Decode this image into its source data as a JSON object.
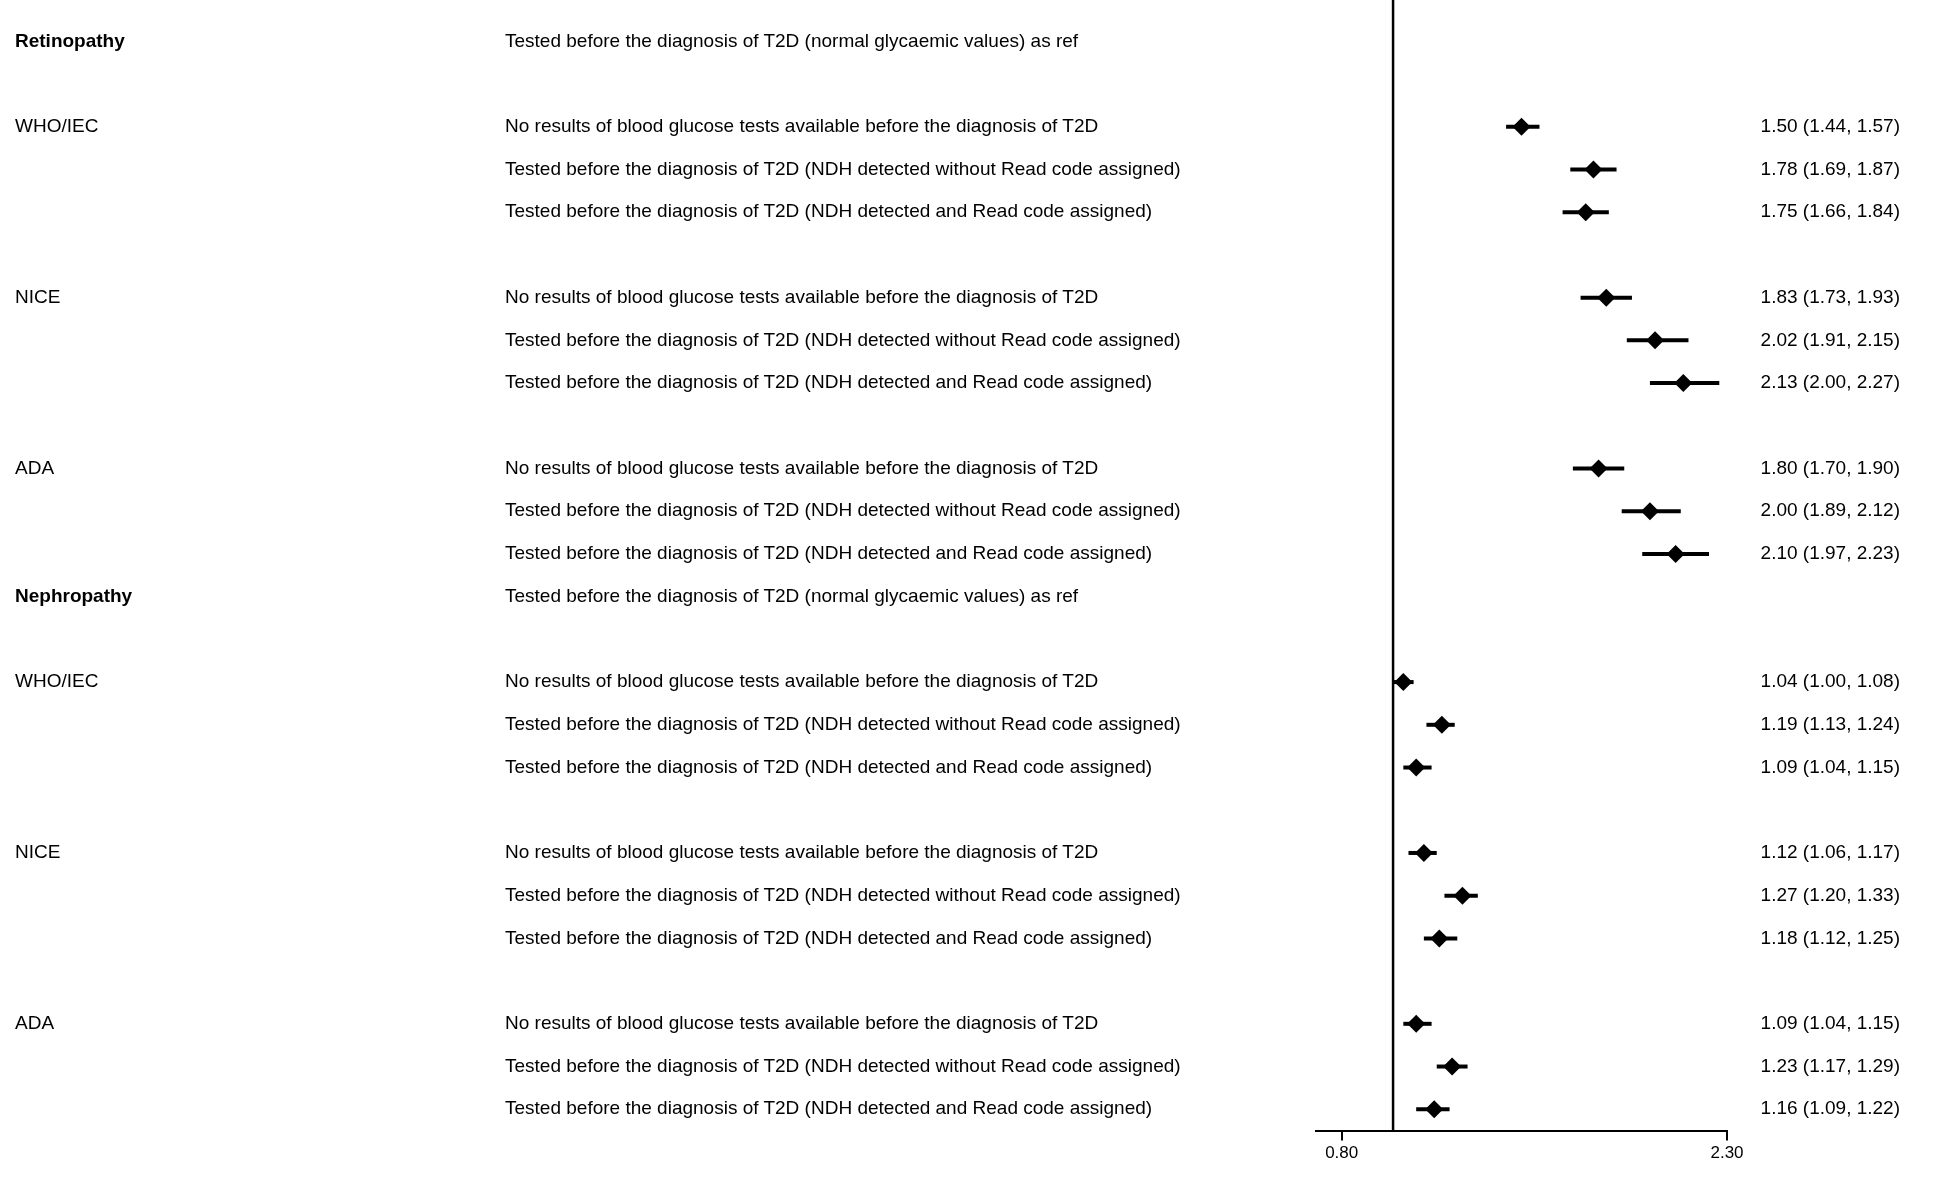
{
  "chart_data": {
    "type": "scatter",
    "orientation": "horizontal",
    "categories": [
      "Tested before the diagnosis of T2D (normal glycaemic values) as ref",
      null,
      "No results of blood glucose tests available before the diagnosis of T2D",
      "Tested before the diagnosis of T2D (NDH detected without Read code assigned)",
      "Tested before the diagnosis of T2D (NDH detected and Read code assigned)",
      null,
      "No results of blood glucose tests available before the diagnosis of T2D",
      "Tested before the diagnosis of T2D (NDH detected without Read code assigned)",
      "Tested before the diagnosis of T2D (NDH detected and Read code assigned)",
      null,
      "No results of blood glucose tests available before the diagnosis of T2D",
      "Tested before the diagnosis of T2D (NDH detected without Read code assigned)",
      "Tested before the diagnosis of T2D (NDH detected and Read code assigned)",
      "Tested before the diagnosis of T2D (normal glycaemic values) as ref",
      null,
      "No results of blood glucose tests available before the diagnosis of T2D",
      "Tested before the diagnosis of T2D (NDH detected without Read code assigned)",
      "Tested before the diagnosis of T2D (NDH detected and Read code assigned)",
      null,
      "No results of blood glucose tests available before the diagnosis of T2D",
      "Tested before the diagnosis of T2D (NDH detected without Read code assigned)",
      "Tested before the diagnosis of T2D (NDH detected and Read code assigned)",
      null,
      "No results of blood glucose tests available before the diagnosis of T2D",
      "Tested before the diagnosis of T2D (NDH detected without Read code assigned)",
      "Tested before the diagnosis of T2D (NDH detected and Read code assigned)"
    ],
    "y2_categories": [
      "Retinopathy",
      null,
      "WHO/IEC",
      null,
      null,
      null,
      "NICE",
      null,
      null,
      null,
      "ADA",
      null,
      null,
      "Nephropathy",
      null,
      "WHO/IEC",
      null,
      null,
      null,
      "NICE",
      null,
      null,
      null,
      "ADA",
      null,
      null
    ],
    "series": [
      {
        "color": "#000000",
        "values": [
          null,
          null,
          1.5,
          1.78,
          1.75,
          null,
          1.83,
          2.02,
          2.13,
          null,
          1.8,
          2.0,
          2.1,
          null,
          null,
          1.04,
          1.19,
          1.09,
          null,
          1.12,
          1.27,
          1.18,
          null,
          1.09,
          1.23,
          1.16
        ],
        "errors": [
          null,
          null,
          [
            1.44,
            1.57
          ],
          [
            1.69,
            1.87
          ],
          [
            1.66,
            1.84
          ],
          null,
          [
            1.73,
            1.93
          ],
          [
            1.91,
            2.15
          ],
          [
            2.0,
            2.27
          ],
          null,
          [
            1.7,
            1.9
          ],
          [
            1.89,
            2.12
          ],
          [
            1.97,
            2.23
          ],
          null,
          null,
          [
            1.0,
            1.08
          ],
          [
            1.13,
            1.24
          ],
          [
            1.04,
            1.15
          ],
          null,
          [
            1.06,
            1.17
          ],
          [
            1.2,
            1.33
          ],
          [
            1.12,
            1.25
          ],
          null,
          [
            1.04,
            1.15
          ],
          [
            1.17,
            1.29
          ],
          [
            1.09,
            1.22
          ]
        ],
        "value_labels": [
          null,
          null,
          "1.50 (1.44, 1.57)",
          "1.78 (1.69, 1.87)",
          "1.75 (1.66, 1.84)",
          null,
          "1.83 (1.73, 1.93)",
          "2.02 (1.91, 2.15)",
          "2.13 (2.00, 2.27)",
          null,
          "1.80 (1.70, 1.90)",
          "2.00 (1.89, 2.12)",
          "2.10 (1.97, 2.23)",
          null,
          null,
          "1.04 (1.00, 1.08)",
          "1.19 (1.13, 1.24)",
          "1.09 (1.04, 1.15)",
          null,
          "1.12 (1.06, 1.17)",
          "1.27 (1.20, 1.33)",
          "1.18 (1.12, 1.25)",
          null,
          "1.09 (1.04, 1.15)",
          "1.23 (1.17, 1.29)",
          "1.16 (1.09, 1.22)"
        ]
      }
    ],
    "xlim": [
      0.7,
      2.3
    ],
    "xticks": [
      {
        "value": 0.8,
        "label": "0.80"
      },
      {
        "value": 2.3,
        "label": "2.30"
      }
    ],
    "ref_lines": [
      {
        "axis": "x",
        "value": 1,
        "color": "#000000"
      }
    ],
    "marker": "diamond",
    "grid": false,
    "legend": false
  }
}
